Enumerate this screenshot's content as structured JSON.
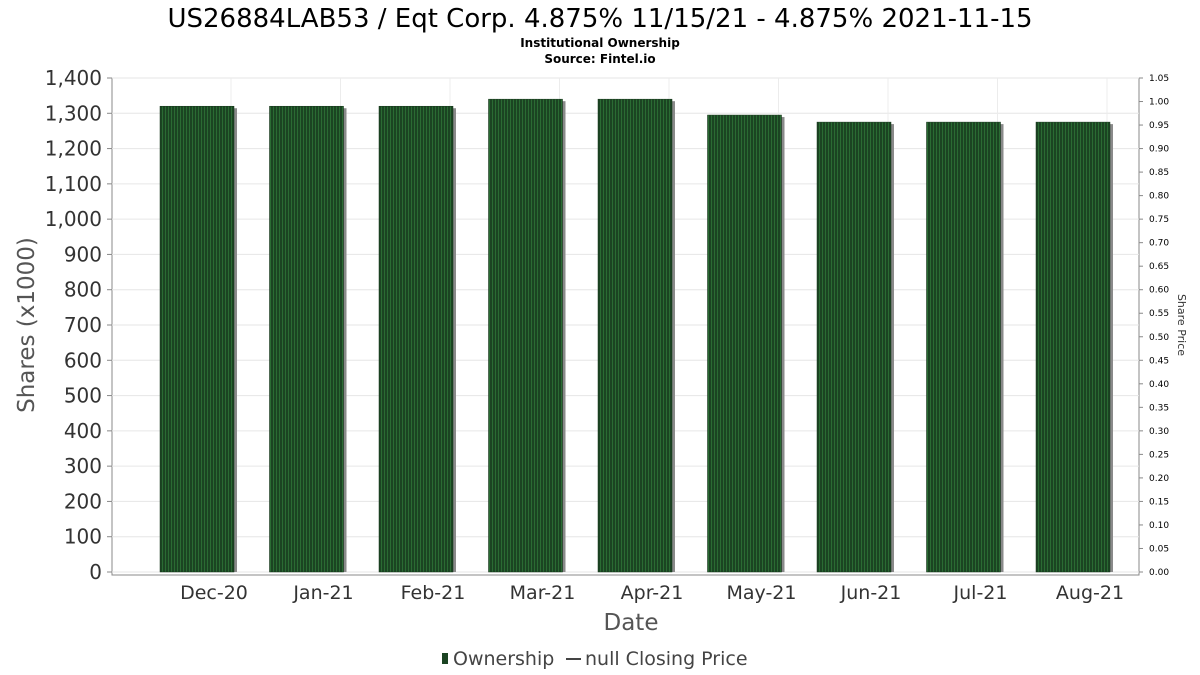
{
  "chart_data": {
    "type": "bar",
    "title": "US26884LAB53 / Eqt Corp. 4.875% 11/15/21 - 4.875% 2021-11-15",
    "subtitle": "Institutional Ownership",
    "source": "Source: Fintel.io",
    "xlabel": "Date",
    "ylabel": "Shares (x1000)",
    "y2label": "Share Price",
    "categories": [
      "Dec-20",
      "Jan-21",
      "Feb-21",
      "Mar-21",
      "Apr-21",
      "May-21",
      "Jun-21",
      "Jul-21",
      "Aug-21"
    ],
    "series": [
      {
        "name": "Ownership",
        "values": [
          1320,
          1320,
          1320,
          1340,
          1340,
          1295,
          1275,
          1275,
          1275
        ]
      }
    ],
    "ylim": [
      0,
      1400
    ],
    "yticks": [
      "0",
      "100",
      "200",
      "300",
      "400",
      "500",
      "600",
      "700",
      "800",
      "900",
      "1,000",
      "1,100",
      "1,200",
      "1,300",
      "1,400"
    ],
    "y2lim": [
      0,
      1.05
    ],
    "y2ticks": [
      "0.00",
      "0.05",
      "0.10",
      "0.15",
      "0.20",
      "0.25",
      "0.30",
      "0.35",
      "0.40",
      "0.45",
      "0.50",
      "0.55",
      "0.60",
      "0.65",
      "0.70",
      "0.75",
      "0.80",
      "0.85",
      "0.90",
      "0.95",
      "1.00",
      "1.05"
    ],
    "legend": [
      {
        "label": "Ownership",
        "marker": "bar"
      },
      {
        "label": "null Closing Price",
        "marker": "line"
      }
    ],
    "grid": true
  },
  "colors": {
    "bar": "#1b4422",
    "bar_stripe": "#2a6b33",
    "bar_shadow": "#8a8a8a",
    "grid": "#e6e6e6",
    "axis": "#888888"
  }
}
